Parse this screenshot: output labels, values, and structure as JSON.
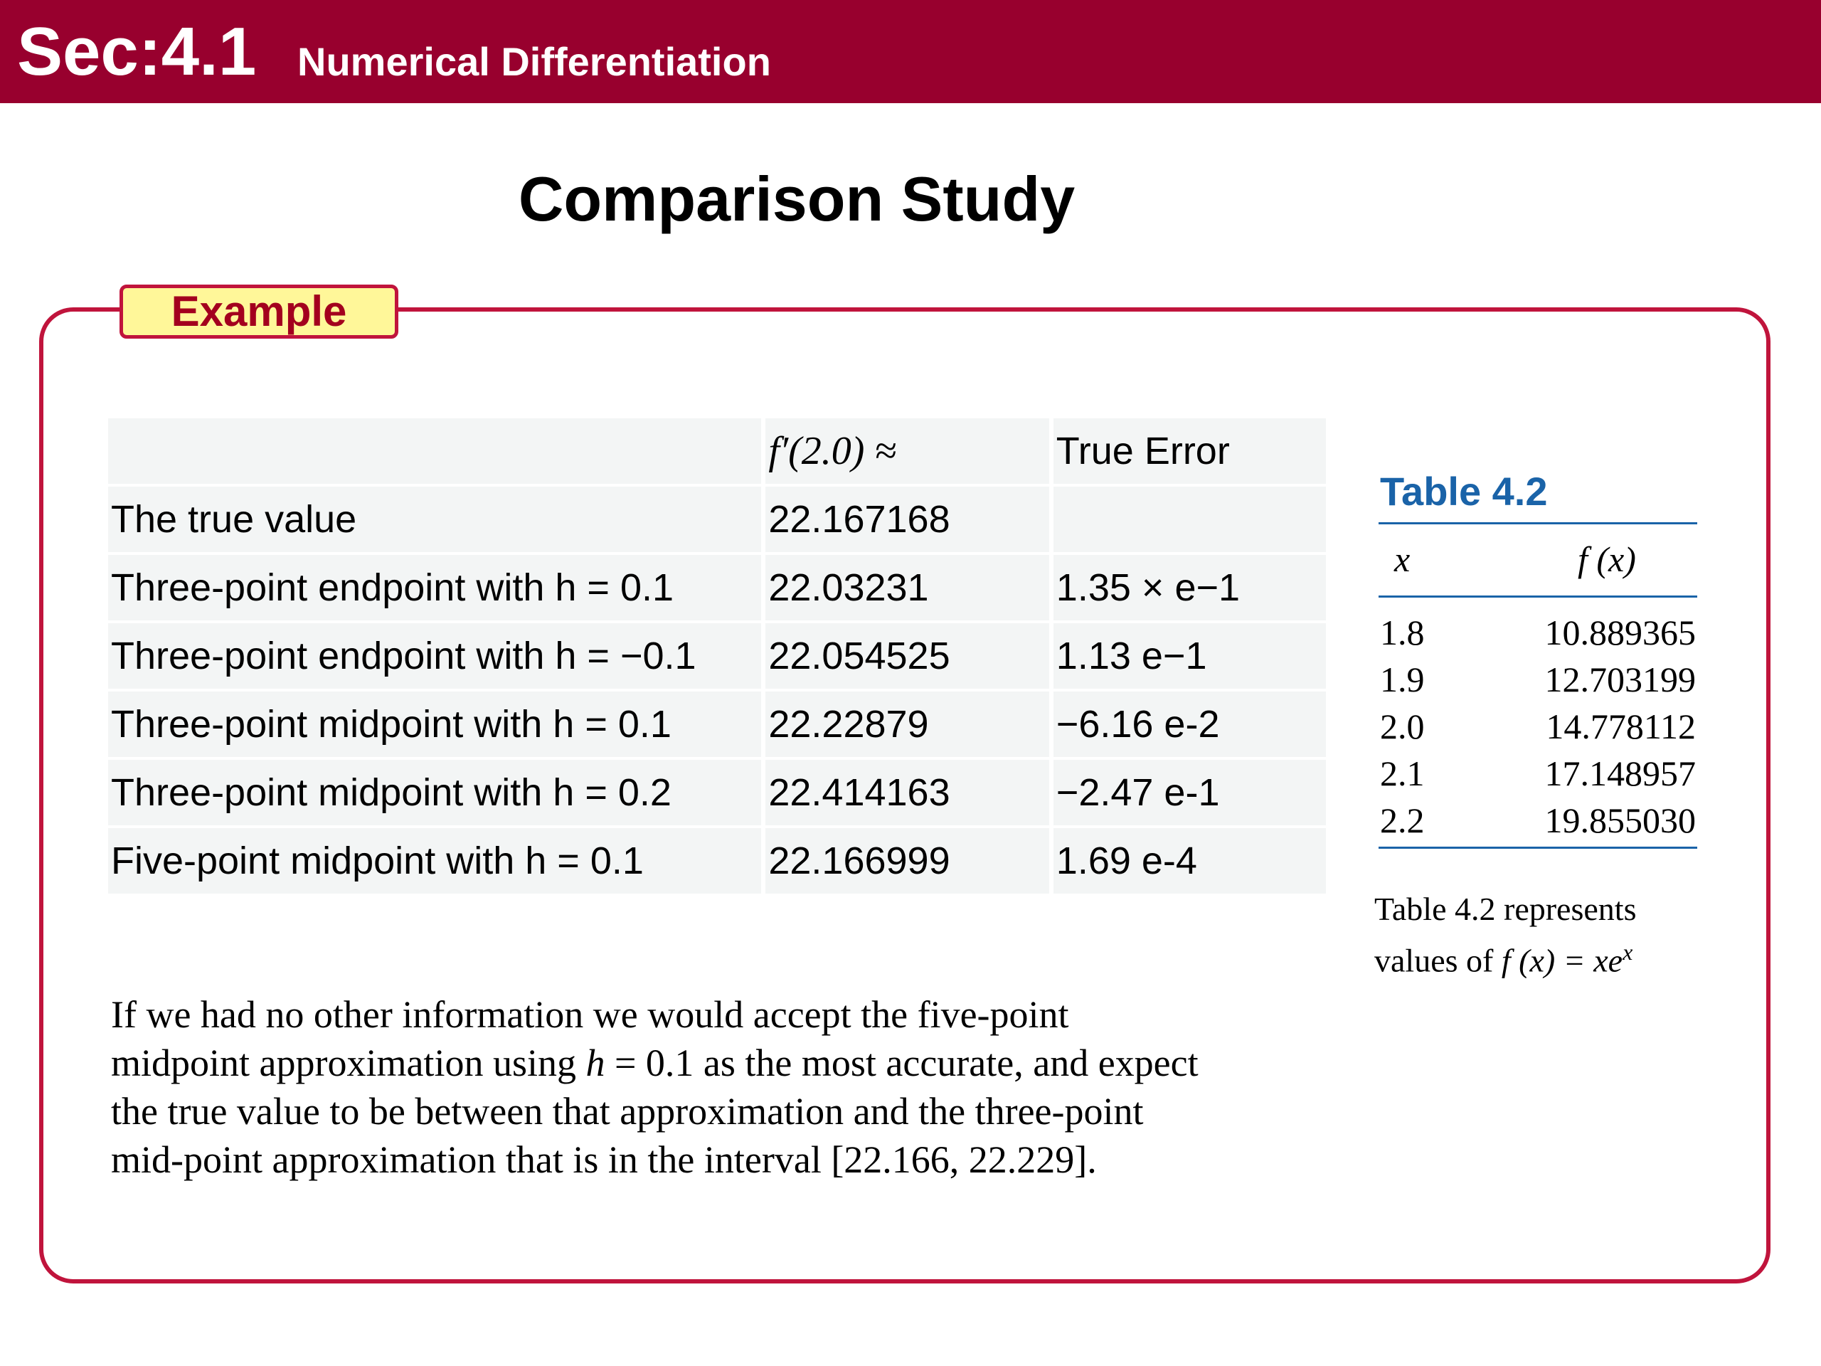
{
  "header": {
    "section": "Sec:4.1",
    "title": "Numerical Differentiation",
    "bar_color": "#98002e"
  },
  "page_title": "Comparison Study",
  "example_label": "Example",
  "comparison_table": {
    "headers": [
      "",
      "f′(2.0) ≈",
      "True Error"
    ],
    "rows": [
      {
        "method": "The true value",
        "approx": "22.167168",
        "error": ""
      },
      {
        "method": "Three-point endpoint with h = 0.1",
        "approx": "22.03231",
        "error": "1.35 × e−1"
      },
      {
        "method": "Three-point endpoint with h = −0.1",
        "approx": "22.054525",
        "error": "1.13 e−1"
      },
      {
        "method": "Three-point midpoint with h = 0.1",
        "approx": "22.22879",
        "error": "−6.16 e-2"
      },
      {
        "method": "Three-point midpoint with h = 0.2",
        "approx": "22.414163",
        "error": "−2.47 e-1"
      },
      {
        "method": "Five-point midpoint with h = 0.1",
        "approx": "22.166999",
        "error": "1.69 e-4"
      }
    ]
  },
  "paragraph": {
    "line1": "If we had no other information we would accept the five-point",
    "line2_a": "midpoint approximation using ",
    "line2_h": "h",
    "line2_b": " = 0.1 as the most accurate, and expect",
    "line3": "the true value to be between that approximation and the three-point",
    "line4": "mid-point approximation that is in the interval [22.166, 22.229]."
  },
  "table_4_2": {
    "title": "Table 4.2",
    "col_x": "x",
    "col_fx": "f (x)",
    "rows": [
      {
        "x": "1.8",
        "fx": "10.889365"
      },
      {
        "x": "1.9",
        "fx": "12.703199"
      },
      {
        "x": "2.0",
        "fx": "14.778112"
      },
      {
        "x": "2.1",
        "fx": "17.148957"
      },
      {
        "x": "2.2",
        "fx": "19.855030"
      }
    ],
    "caption_line1": "Table 4.2 represents",
    "caption_line2_a": "values of ",
    "caption_line2_fx": "f (x) = xe",
    "caption_line2_sup": "x",
    "accent_color": "#1a63a8"
  },
  "box_color": "#c0143c",
  "tab_fill": "#fff799"
}
